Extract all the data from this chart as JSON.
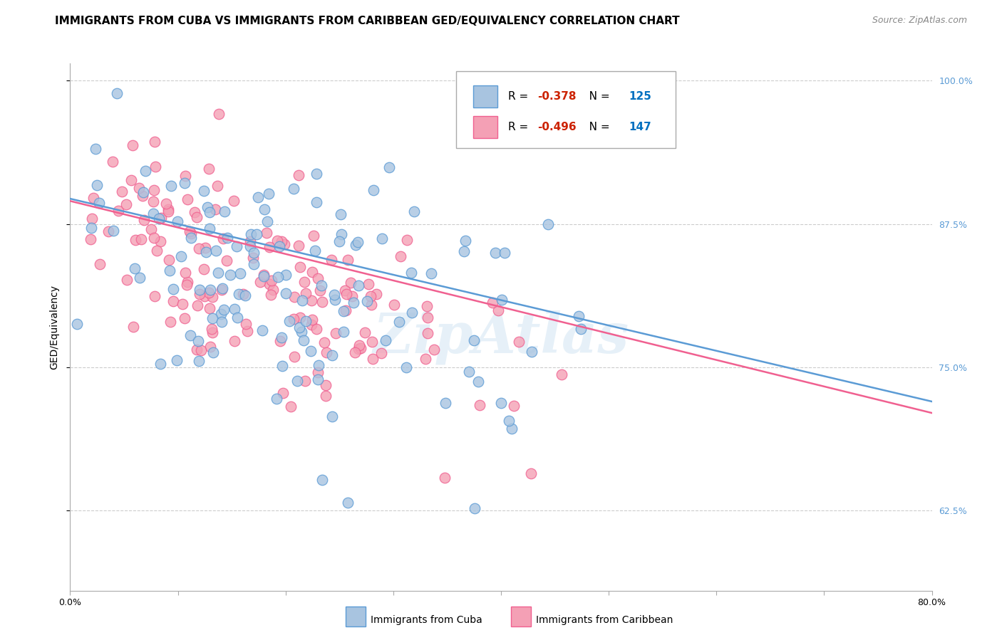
{
  "title": "IMMIGRANTS FROM CUBA VS IMMIGRANTS FROM CARIBBEAN GED/EQUIVALENCY CORRELATION CHART",
  "source": "Source: ZipAtlas.com",
  "ylabel": "GED/Equivalency",
  "xlim": [
    0.0,
    0.8
  ],
  "ylim": [
    0.555,
    1.015
  ],
  "yticks": [
    0.625,
    0.75,
    0.875,
    1.0
  ],
  "ytick_labels": [
    "62.5%",
    "75.0%",
    "87.5%",
    "100.0%"
  ],
  "xticks": [
    0.0,
    0.1,
    0.2,
    0.3,
    0.4,
    0.5,
    0.6,
    0.7,
    0.8
  ],
  "xtick_labels": [
    "0.0%",
    "",
    "",
    "",
    "",
    "",
    "",
    "",
    "80.0%"
  ],
  "cuba_R": -0.378,
  "cuba_N": 125,
  "carib_R": -0.496,
  "carib_N": 147,
  "cuba_color": "#a8c4e0",
  "carib_color": "#f4a0b5",
  "cuba_line_color": "#5b9bd5",
  "carib_line_color": "#f06090",
  "legend_r_color": "#cc2200",
  "legend_n_color": "#0070c0",
  "watermark": "ZipAtlas",
  "grid_color": "#cccccc",
  "background_color": "#ffffff",
  "title_fontsize": 11,
  "axis_label_fontsize": 10,
  "tick_fontsize": 9,
  "legend_fontsize": 11,
  "right_tick_color": "#5b9bd5",
  "cuba_regline": [
    0.897,
    0.72
  ],
  "carib_regline": [
    0.895,
    0.71
  ]
}
